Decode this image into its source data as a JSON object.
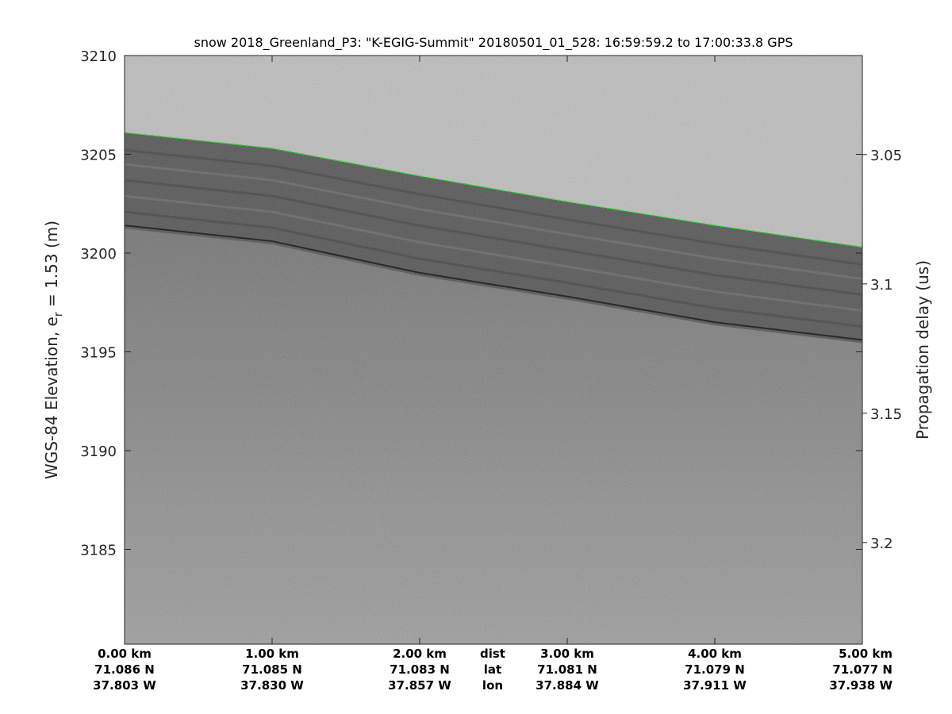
{
  "chart_data": {
    "type": "heatmap",
    "title": "snow 2018_Greenland_P3: \"K-EGIG-Summit\"  20180501_01_528: 16:59:59.2 to 17:00:33.8 GPS",
    "ylabel": "WGS-84 Elevation, e",
    "ylabel_sub": "r",
    "ylabel_suffix": " = 1.53 (m)",
    "ylabel_right": "Propagation delay (us)",
    "ylim": [
      3180.2,
      3210
    ],
    "yticks": [
      3185,
      3190,
      3195,
      3200,
      3205,
      3210
    ],
    "ylim_right": [
      3.0117,
      3.2393
    ],
    "yticks_right": [
      3.05,
      3.1,
      3.15,
      3.2
    ],
    "xlim_km": [
      0,
      5
    ],
    "colormap": "gray",
    "x_rows": {
      "dist": {
        "label": "dist",
        "values": [
          "0.00 km",
          "1.00 km",
          "2.00 km",
          "3.00 km",
          "4.00 km",
          "5.00 km"
        ]
      },
      "lat": {
        "label": "lat",
        "values": [
          "71.086 N",
          "71.085 N",
          "71.083 N",
          "71.081 N",
          "71.079 N",
          "71.077 N"
        ]
      },
      "lon": {
        "label": "lon",
        "values": [
          "37.803 W",
          "37.830 W",
          "37.857 W",
          "37.884 W",
          "37.911 W",
          "37.938 W"
        ]
      }
    },
    "surface_pick": {
      "color": "#22dd22",
      "x_km": [
        0,
        1,
        2,
        3,
        4,
        5
      ],
      "elevation_m": [
        3206.1,
        3205.3,
        3203.9,
        3202.6,
        3201.4,
        3200.3
      ]
    },
    "internal_layer": {
      "x_km": [
        0,
        1,
        2,
        3,
        4,
        5
      ],
      "elevation_m": [
        3201.4,
        3200.6,
        3199.0,
        3197.8,
        3196.5,
        3195.6
      ]
    }
  }
}
